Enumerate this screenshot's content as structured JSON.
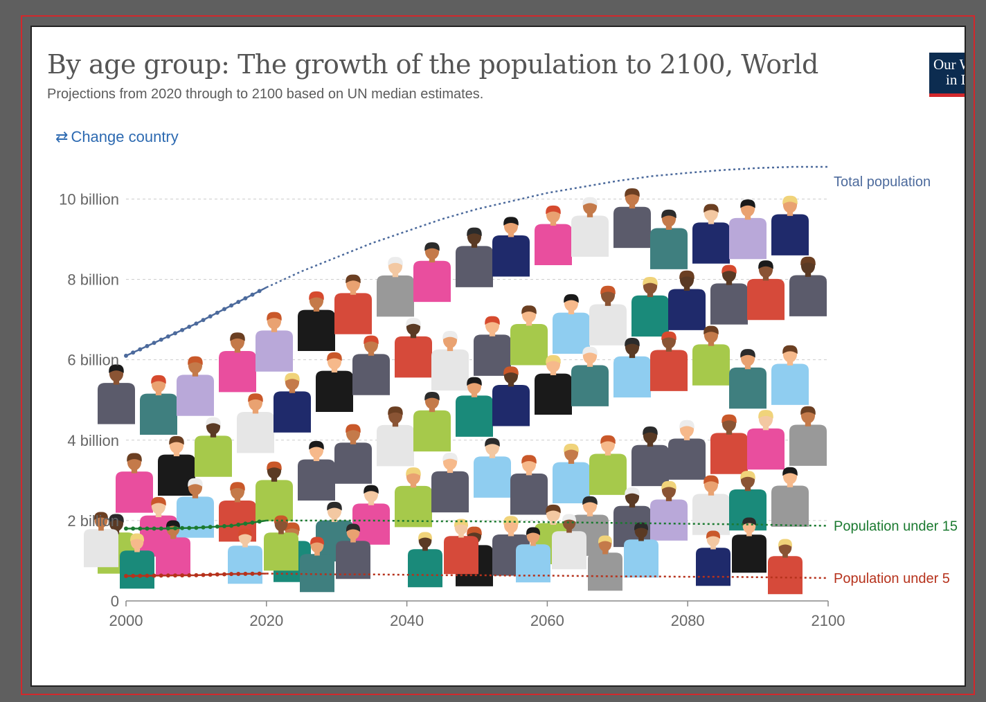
{
  "header": {
    "title": "By age group: The growth of the population to 2100, World",
    "subtitle": "Projections from 2020 through to 2100 based on UN median estimates.",
    "change_country": "Change country",
    "change_country_icon": "swap-arrows-icon"
  },
  "logo": {
    "line1": "Our W",
    "line2": "in Da"
  },
  "colors": {
    "total": "#4c6a9c",
    "under15": "#1b7a30",
    "under5": "#b6321c",
    "grid": "#cccccc",
    "axis": "#888888",
    "people_palette": [
      "#a6c94b",
      "#8fcdf0",
      "#e94e9e",
      "#999999",
      "#3f7f7f",
      "#5b5b6b",
      "#b9a8d9",
      "#1a1a1a",
      "#e6e6e6",
      "#1f2a6b",
      "#1a8a7a",
      "#d64a3a"
    ]
  },
  "chart_data": {
    "type": "line",
    "title": "By age group: The growth of the population to 2100, World",
    "subtitle": "Projections from 2020 through to 2100 based on UN median estimates.",
    "x_ticks": [
      "2000",
      "2020",
      "2040",
      "2060",
      "2080",
      "2100"
    ],
    "y_ticks": [
      "0",
      "2 billion",
      "4 billion",
      "6 billion",
      "8 billion",
      "10 billion"
    ],
    "xlim": [
      2000,
      2100
    ],
    "ylim": [
      0,
      10.8
    ],
    "grid": true,
    "series": [
      {
        "name": "Total population",
        "style": "historical-dots-then-dotted-projection",
        "x": [
          2000,
          2005,
          2010,
          2015,
          2020,
          2025,
          2030,
          2035,
          2040,
          2045,
          2050,
          2055,
          2060,
          2065,
          2070,
          2075,
          2080,
          2085,
          2090,
          2095,
          2100
        ],
        "values": [
          6.1,
          6.5,
          6.9,
          7.35,
          7.8,
          8.2,
          8.55,
          8.9,
          9.2,
          9.5,
          9.75,
          9.95,
          10.15,
          10.3,
          10.45,
          10.57,
          10.65,
          10.72,
          10.77,
          10.8,
          10.8
        ]
      },
      {
        "name": "Population under 15",
        "style": "historical-dots-then-dotted-projection",
        "x": [
          2000,
          2005,
          2010,
          2015,
          2020,
          2025,
          2030,
          2035,
          2040,
          2045,
          2050,
          2055,
          2060,
          2065,
          2070,
          2075,
          2080,
          2085,
          2090,
          2095,
          2100
        ],
        "values": [
          1.8,
          1.8,
          1.82,
          1.87,
          2.0,
          2.0,
          2.0,
          2.0,
          1.99,
          1.98,
          1.98,
          1.97,
          1.96,
          1.95,
          1.94,
          1.93,
          1.92,
          1.91,
          1.9,
          1.88,
          1.87
        ]
      },
      {
        "name": "Population under 5",
        "style": "historical-dots-then-dotted-projection",
        "x": [
          2000,
          2005,
          2010,
          2015,
          2020,
          2025,
          2030,
          2035,
          2040,
          2045,
          2050,
          2055,
          2060,
          2065,
          2070,
          2075,
          2080,
          2085,
          2090,
          2095,
          2100
        ],
        "values": [
          0.62,
          0.63,
          0.64,
          0.67,
          0.68,
          0.67,
          0.66,
          0.66,
          0.65,
          0.64,
          0.64,
          0.63,
          0.63,
          0.62,
          0.61,
          0.61,
          0.6,
          0.6,
          0.59,
          0.58,
          0.57
        ]
      }
    ],
    "historical_end": 2020
  }
}
